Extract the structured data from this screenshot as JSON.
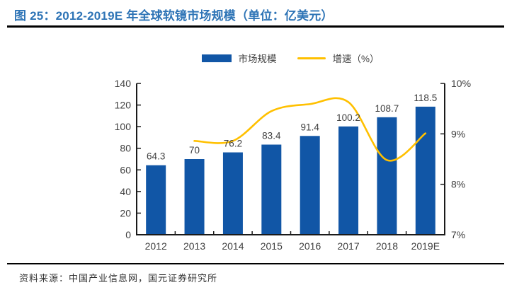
{
  "figure": {
    "title": "图 25：2012-2019E 年全球软镜市场规模（单位：亿美元）",
    "source": "资料来源：中国产业信息网，国元证券研究所"
  },
  "colors": {
    "bar": "#1156A6",
    "line": "#FFC000",
    "title": "#2E74B6",
    "label": "#404040",
    "axis": "#1a1a1a",
    "source": "#333333"
  },
  "legend": {
    "items": [
      {
        "label": "市场规模",
        "swatch": "bar-swatch"
      },
      {
        "label": "增速（%）",
        "swatch": "line-swatch"
      }
    ]
  },
  "chart_data": {
    "type": "bar",
    "subtype": "combo-bar-line-dual-axis",
    "title": "2012-2019E 年全球软镜市场规模（单位：亿美元）",
    "categories": [
      "2012",
      "2013",
      "2014",
      "2015",
      "2016",
      "2017",
      "2018",
      "2019E"
    ],
    "series": [
      {
        "name": "市场规模",
        "type": "bar",
        "axis": "left",
        "color": "#1156A6",
        "values": [
          64.3,
          70,
          76.2,
          83.4,
          91.4,
          100.2,
          108.7,
          118.5
        ]
      },
      {
        "name": "增速（%）",
        "type": "line",
        "axis": "right",
        "color": "#FFC000",
        "values": [
          null,
          8.86,
          8.86,
          9.45,
          9.59,
          9.63,
          8.48,
          9.01
        ]
      }
    ],
    "bar_value_labels": [
      "64.3",
      "70",
      "76.2",
      "83.4",
      "91.4",
      "100.2",
      "108.7",
      "118.5"
    ],
    "left_axis": {
      "min": 0,
      "max": 140,
      "step": 20
    },
    "right_axis": {
      "min": 7,
      "max": 10,
      "step": 1,
      "suffix": "%"
    },
    "legend_position": "top",
    "grid": false
  }
}
